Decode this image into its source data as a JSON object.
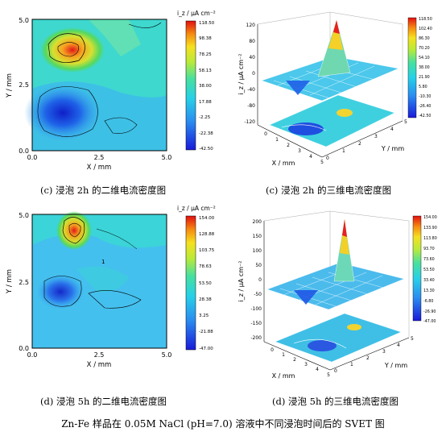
{
  "figure": {
    "main_caption": "Zn-Fe 样品在 0.05M NaCl (pH=7.0) 溶液中不同浸泡时间后的 SVET 图"
  },
  "panels": [
    {
      "id": "c2d",
      "caption": "(c) 浸泡 2h 的二维电流密度图",
      "x_label": "X / mm",
      "y_label": "Y / mm",
      "x_ticks": [
        "0.0",
        "2.5",
        "5.0"
      ],
      "y_ticks": [
        "0.0",
        "2.5",
        "5.0"
      ],
      "colorbar_title": "i_z / µA cm⁻²",
      "colorbar_ticks": [
        "118.50",
        "98.38",
        "78.25",
        "58.13",
        "38.00",
        "17.88",
        "-2.25",
        "-22.38",
        "-42.50"
      ]
    },
    {
      "id": "c3d",
      "caption": "(c) 浸泡 2h 的三维电流密度图",
      "z_label": "i_z / µA cm⁻²",
      "z_ticks": [
        "120",
        "80",
        "40",
        "0",
        "-40",
        "-80",
        "-120"
      ],
      "x_label": "X / mm",
      "y_label": "Y / mm",
      "x_ticks": [
        "0",
        "1",
        "2",
        "3",
        "4",
        "5"
      ],
      "y_ticks": [
        "0",
        "1",
        "2",
        "3",
        "4",
        "5"
      ],
      "colorbar_ticks": [
        "118.50",
        "102.40",
        "86.30",
        "70.20",
        "54.10",
        "38.00",
        "21.90",
        "5.80",
        "-10.30",
        "-26.40",
        "-42.50"
      ]
    },
    {
      "id": "d2d",
      "caption": "(d) 浸泡 5h 的二维电流密度图",
      "x_label": "X / mm",
      "y_label": "Y / mm",
      "x_ticks": [
        "0.0",
        "2.5",
        "5.0"
      ],
      "y_ticks": [
        "0.0",
        "2.5",
        "5.0"
      ],
      "colorbar_title": "i_z / µA cm⁻²",
      "colorbar_ticks": [
        "154.00",
        "128.88",
        "103.75",
        "78.63",
        "53.50",
        "28.38",
        "3.25",
        "-21.88",
        "-47.00"
      ],
      "contour_label": "1"
    },
    {
      "id": "d3d",
      "caption": "(d) 浸泡 5h 的三维电流密度图",
      "z_label": "i_z / µA cm⁻²",
      "z_ticks": [
        "200",
        "150",
        "100",
        "50",
        "0",
        "-50",
        "-100",
        "-150",
        "-200"
      ],
      "x_label": "X / mm",
      "y_label": "Y / mm",
      "x_ticks": [
        "0",
        "1",
        "2",
        "3",
        "4",
        "5"
      ],
      "y_ticks": [
        "0",
        "1",
        "2",
        "3",
        "4",
        "5"
      ],
      "colorbar_ticks": [
        "154.00",
        "133.90",
        "113.80",
        "93.70",
        "73.60",
        "53.50",
        "33.40",
        "13.30",
        "-6.80",
        "-26.90",
        "-47.00"
      ]
    }
  ]
}
